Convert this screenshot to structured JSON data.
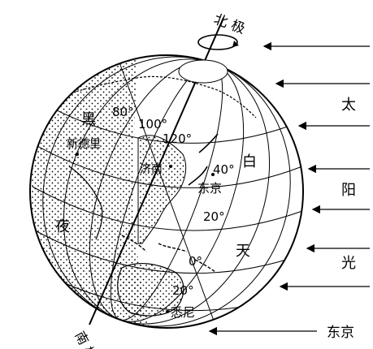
{
  "axis": {
    "north_pole": "北 极",
    "south_pole": "南 极"
  },
  "sunlight": {
    "label_chars": [
      "太",
      "阳",
      "光"
    ],
    "arrows_count_text": ""
  },
  "hemispheres": {
    "night": [
      "黑",
      "夜"
    ],
    "day": [
      "白",
      "天"
    ]
  },
  "meridian_labels": [
    "80°",
    "100°",
    "120°"
  ],
  "parallel_labels": [
    "40°",
    "20°",
    "0°",
    "20°"
  ],
  "cities": {
    "new_delhi": "新德里",
    "jinan": "济南",
    "tokyo": "东京",
    "sydney": "悉尼"
  },
  "bottom_label": "东京",
  "colors": {
    "ink": "#000000",
    "background": "#ffffff",
    "night_stipple": "#000000"
  }
}
